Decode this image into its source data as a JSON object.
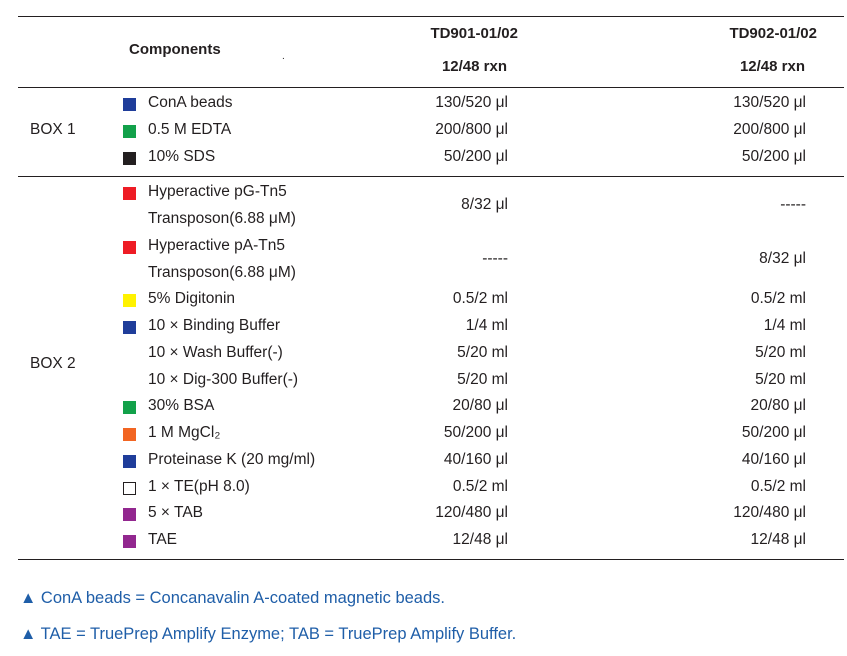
{
  "header": {
    "components": "Components",
    "dot": ".",
    "col1_line1": "TD901-01/02",
    "col1_line2": "12/48 rxn",
    "col2_line1": "TD902-01/02",
    "col2_line2": "12/48 rxn"
  },
  "boxes": [
    {
      "label": "BOX 1"
    },
    {
      "label": "BOX 2"
    }
  ],
  "rows": [
    {
      "swatch": "#1f3d9a",
      "name": "ConA beads",
      "v1": "130/520 μl",
      "v2": "130/520 μl"
    },
    {
      "swatch": "#12a14a",
      "name": "0.5 M EDTA",
      "v1": "200/800 μl",
      "v2": "200/800 μl"
    },
    {
      "swatch": "#231f20",
      "name": "10% SDS",
      "v1": "50/200 μl",
      "v2": "50/200 μl"
    },
    {
      "swatch": "#ee1c25",
      "name": "Hyperactive pG-Tn5",
      "v1": "8/32 μl",
      "v2": "-----"
    },
    {
      "swatch": "",
      "name": "Transposon(6.88 μM)",
      "v1": "",
      "v2": ""
    },
    {
      "swatch": "#ee1c25",
      "name": "Hyperactive pA-Tn5",
      "v1": "-----",
      "v2": "8/32 μl"
    },
    {
      "swatch": "",
      "name": "Transposon(6.88 μM)",
      "v1": "",
      "v2": ""
    },
    {
      "swatch": "#fff200",
      "name": "5% Digitonin",
      "v1": "0.5/2 ml",
      "v2": "0.5/2 ml"
    },
    {
      "swatch": "#1f3d9a",
      "name": "10 × Binding Buffer",
      "v1": "1/4 ml",
      "v2": "1/4 ml"
    },
    {
      "swatch": "",
      "name": "10 × Wash Buffer(-)",
      "v1": "5/20 ml",
      "v2": "5/20 ml"
    },
    {
      "swatch": "",
      "name": "10 × Dig-300 Buffer(-)",
      "v1": "5/20 ml",
      "v2": "5/20 ml"
    },
    {
      "swatch": "#12a14a",
      "name": "30% BSA",
      "v1": "20/80 μl",
      "v2": "20/80 μl"
    },
    {
      "swatch": "#f26522",
      "name": "1 M MgCl₂",
      "v1": "50/200 μl",
      "v2": "50/200 μl"
    },
    {
      "swatch": "#1f3d9a",
      "name": "Proteinase K (20 mg/ml)",
      "v1": "40/160 μl",
      "v2": "40/160 μl"
    },
    {
      "swatch": "#ffffff",
      "name": "1 × TE(pH 8.0)",
      "v1": "0.5/2 ml",
      "v2": "0.5/2 ml"
    },
    {
      "swatch": "#92278f",
      "name": "5 × TAB",
      "v1": "120/480 μl",
      "v2": "120/480 μl"
    },
    {
      "swatch": "#92278f",
      "name": "TAE",
      "v1": "12/48 μl",
      "v2": "12/48 μl"
    }
  ],
  "notes": [
    "▲ ConA beads = Concanavalin A-coated magnetic beads.",
    "▲ TAE = TruePrep Amplify Enzyme; TAB = TruePrep Amplify Buffer."
  ]
}
